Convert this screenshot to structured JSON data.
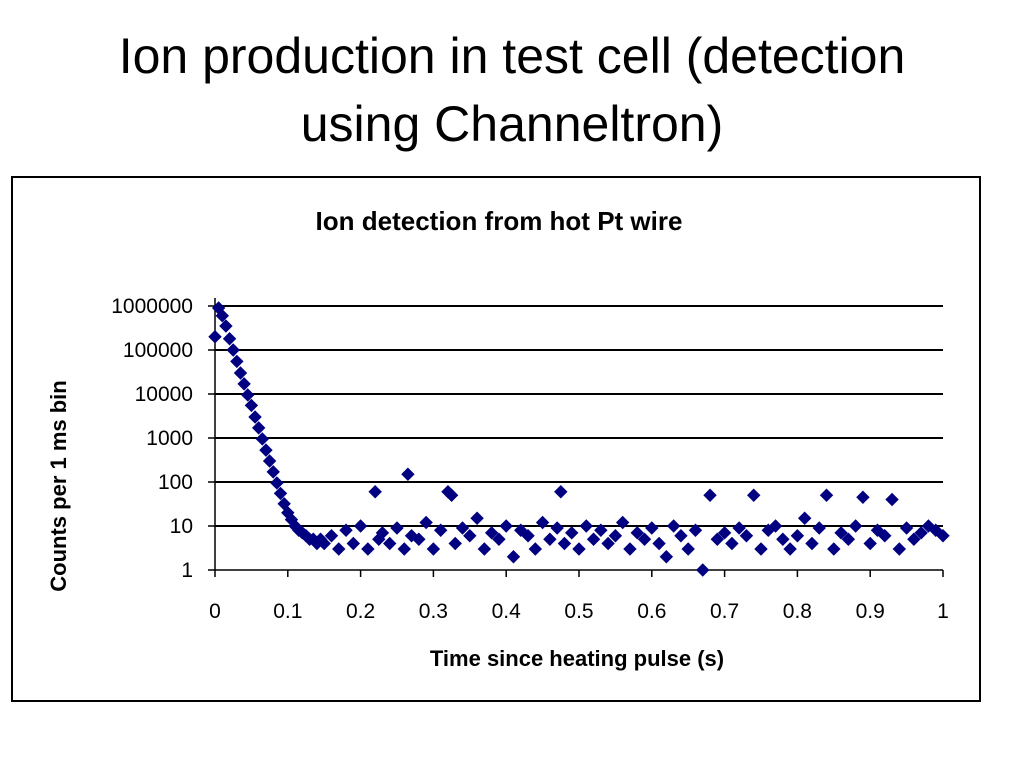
{
  "slide": {
    "title_line1": "Ion production in test cell (detection",
    "title_line2": "using Channeltron)"
  },
  "chart_data": {
    "type": "scatter",
    "title": "Ion detection from hot Pt wire",
    "xlabel": "Time since heating pulse (s)",
    "ylabel": "Counts per 1 ms bin",
    "xlim": [
      0,
      1
    ],
    "ylim": [
      1,
      1000000
    ],
    "yscale": "log",
    "grid": "horizontal major gridlines",
    "legend": "none",
    "marker": "diamond",
    "series_color": "#000080",
    "x_ticks": [
      "0",
      "0.1",
      "0.2",
      "0.3",
      "0.4",
      "0.5",
      "0.6",
      "0.7",
      "0.8",
      "0.9",
      "1"
    ],
    "y_ticks": [
      "1",
      "10",
      "100",
      "1000",
      "10000",
      "100000",
      "1000000"
    ],
    "series": [
      {
        "x": [
          0.0,
          0.005,
          0.01,
          0.015,
          0.02,
          0.025,
          0.03,
          0.035,
          0.04,
          0.045,
          0.05,
          0.055,
          0.06,
          0.065,
          0.07,
          0.075,
          0.08,
          0.085,
          0.09,
          0.095,
          0.1,
          0.105,
          0.11,
          0.115,
          0.12,
          0.125,
          0.13,
          0.135,
          0.14,
          0.145,
          0.15,
          0.16,
          0.17,
          0.18,
          0.19,
          0.2,
          0.21,
          0.22,
          0.225,
          0.23,
          0.24,
          0.25,
          0.26,
          0.265,
          0.27,
          0.28,
          0.29,
          0.3,
          0.31,
          0.32,
          0.325,
          0.33,
          0.34,
          0.35,
          0.36,
          0.37,
          0.38,
          0.39,
          0.4,
          0.41,
          0.42,
          0.43,
          0.44,
          0.45,
          0.46,
          0.47,
          0.475,
          0.48,
          0.49,
          0.5,
          0.51,
          0.52,
          0.53,
          0.54,
          0.55,
          0.56,
          0.57,
          0.58,
          0.59,
          0.6,
          0.61,
          0.62,
          0.63,
          0.64,
          0.65,
          0.66,
          0.67,
          0.68,
          0.69,
          0.7,
          0.71,
          0.72,
          0.73,
          0.74,
          0.75,
          0.76,
          0.77,
          0.78,
          0.79,
          0.8,
          0.81,
          0.82,
          0.83,
          0.84,
          0.85,
          0.86,
          0.87,
          0.88,
          0.89,
          0.9,
          0.91,
          0.92,
          0.93,
          0.94,
          0.95,
          0.96,
          0.97,
          0.98,
          0.99,
          1.0
        ],
        "y": [
          200000,
          900000,
          600000,
          350000,
          180000,
          100000,
          55000,
          30000,
          17000,
          9500,
          5500,
          3000,
          1700,
          950,
          530,
          300,
          170,
          95,
          55,
          32,
          20,
          14,
          10,
          8,
          7,
          6,
          5,
          5,
          4,
          5,
          4,
          6,
          3,
          8,
          4,
          10,
          3,
          60,
          5,
          7,
          4,
          9,
          3,
          150,
          6,
          5,
          12,
          3,
          8,
          60,
          50,
          4,
          9,
          6,
          15,
          3,
          7,
          5,
          10,
          2,
          8,
          6,
          3,
          12,
          5,
          9,
          60,
          4,
          7,
          3,
          10,
          5,
          8,
          4,
          6,
          12,
          3,
          7,
          5,
          9,
          4,
          2,
          10,
          6,
          3,
          8,
          1,
          50,
          5,
          7,
          4,
          9,
          6,
          50,
          3,
          8,
          10,
          5,
          3,
          6,
          15,
          4,
          9,
          50,
          3,
          7,
          5,
          10,
          45,
          4,
          8,
          6,
          40,
          3,
          9,
          5,
          7,
          10,
          8,
          6
        ]
      }
    ]
  }
}
